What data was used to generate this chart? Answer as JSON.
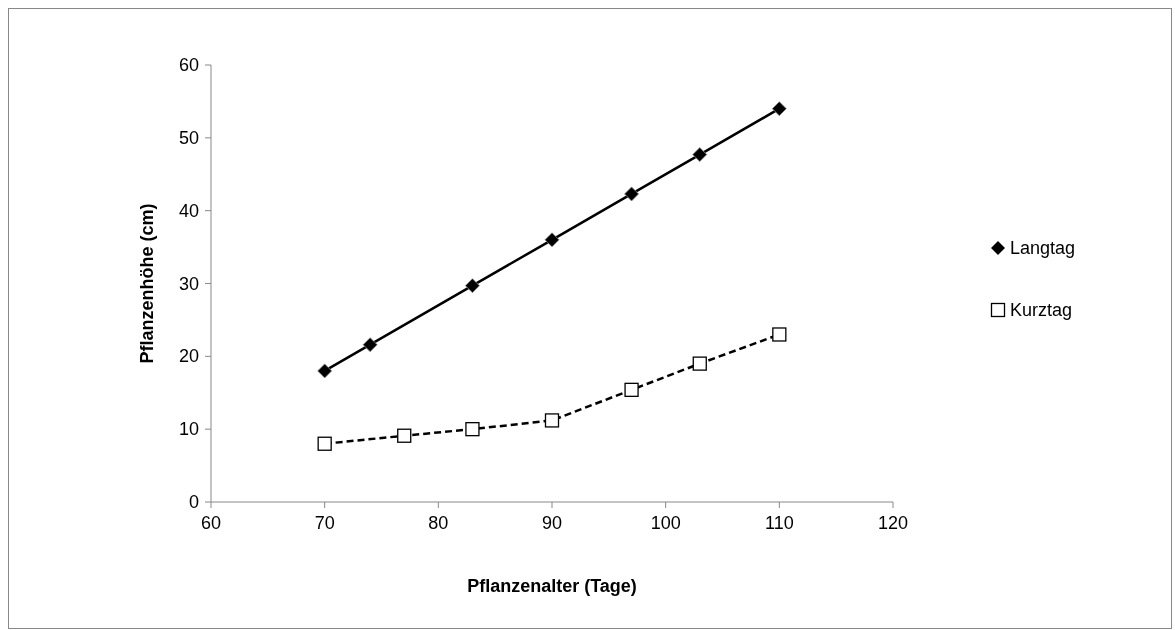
{
  "chart_data": {
    "type": "line",
    "xlabel": "Pflanzenalter (Tage)",
    "ylabel": "Pflanzenhöhe (cm)",
    "xlim": [
      60,
      120
    ],
    "xticks": [
      60,
      70,
      80,
      90,
      100,
      110,
      120
    ],
    "ylim": [
      0,
      60
    ],
    "yticks": [
      0,
      10,
      20,
      30,
      40,
      50,
      60
    ],
    "grid": false,
    "legend": "right",
    "series": [
      {
        "name": "Langtag",
        "color": "#000000",
        "marker": "diamond",
        "line_style": "solid",
        "x": [
          70,
          74,
          83,
          90,
          97,
          103,
          110
        ],
        "values": [
          18,
          21.6,
          29.7,
          36,
          42.3,
          47.7,
          54
        ]
      },
      {
        "name": "Kurztag",
        "color": "#000000",
        "marker": "square",
        "line_style": "dashed",
        "x": [
          70,
          77,
          83,
          90,
          97,
          103,
          110
        ],
        "values": [
          8,
          9.1,
          10,
          11.2,
          15.4,
          19,
          23
        ]
      }
    ]
  }
}
